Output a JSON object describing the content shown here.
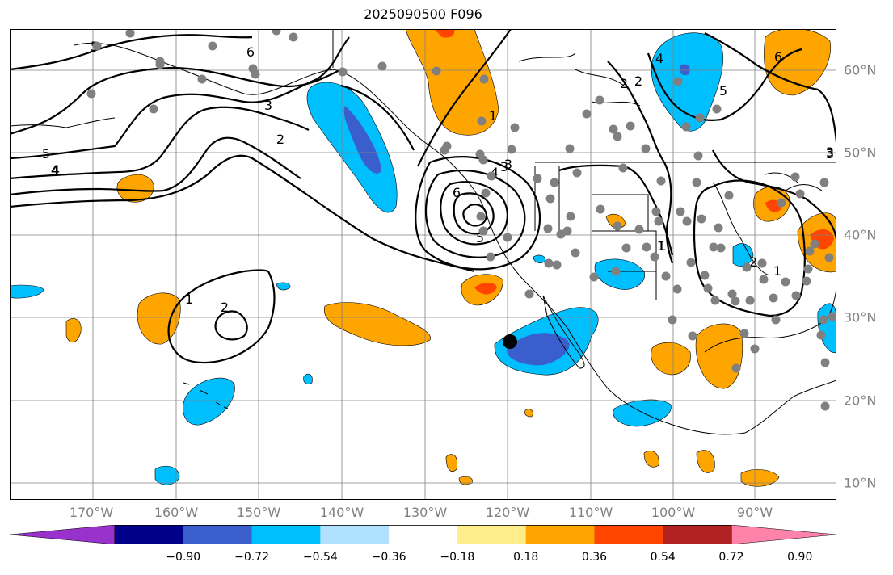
{
  "title": "2025090500 F096",
  "lon_labels": [
    "170°W",
    "160°W",
    "150°W",
    "140°W",
    "130°W",
    "120°W",
    "110°W",
    "100°W",
    "90°W"
  ],
  "lat_labels": [
    "60°N",
    "50°N",
    "40°N",
    "30°N",
    "20°N",
    "10°N"
  ],
  "colorbar": {
    "ticks": [
      "−0.90",
      "−0.72",
      "−0.54",
      "−0.36",
      "−0.18",
      "0.18",
      "0.36",
      "0.54",
      "0.72",
      "0.90"
    ],
    "colors": [
      "#9932CC",
      "#00008B",
      "#3A5FCD",
      "#00BFFF",
      "#B0E2FF",
      "#FFFFFF",
      "#FFEC8B",
      "#FFA500",
      "#FF4500",
      "#B22222",
      "#FF82AB"
    ]
  },
  "contour_labels": [
    "6",
    "5",
    "4",
    "3",
    "2",
    "1",
    "5",
    "4",
    "3",
    "2",
    "6",
    "5",
    "4",
    "3",
    "2",
    "1",
    "2",
    "1",
    "5",
    "6",
    "4",
    "3",
    "2",
    "1",
    "1",
    "3"
  ],
  "colors": {
    "grid": "#808080",
    "contour": "#000000",
    "station": "#808080",
    "marker": "#000000"
  }
}
